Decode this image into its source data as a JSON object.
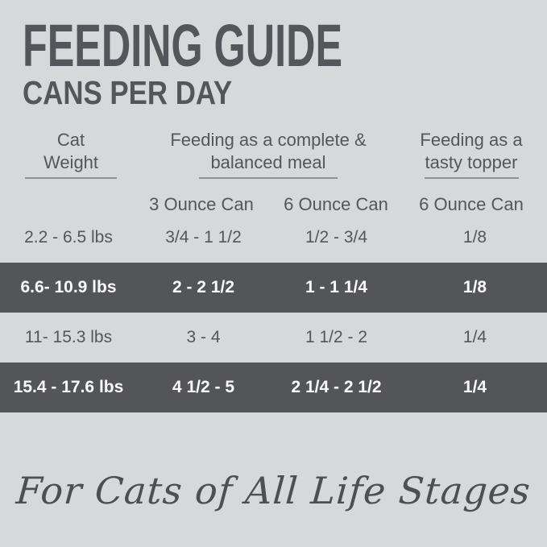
{
  "title": "FEEDING GUIDE",
  "subtitle": "CANS PER DAY",
  "header": {
    "cat_weight": {
      "line1": "Cat",
      "line2": "Weight"
    },
    "complete_meal": {
      "line1": "Feeding as a complete &",
      "line2": "balanced meal"
    },
    "tasty_topper": {
      "line1": "Feeding as a",
      "line2": "tasty topper"
    }
  },
  "subheaders": {
    "complete_3oz": "3 Ounce Can",
    "complete_6oz": "6 Ounce Can",
    "topper_6oz": "6 Ounce Can"
  },
  "rows": [
    {
      "weight": "2.2 - 6.5 lbs",
      "can3": "3/4 - 1 1/2",
      "can6": "1/2 - 3/4",
      "topper": "1/8"
    },
    {
      "weight": "6.6- 10.9 lbs",
      "can3": "2 - 2 1/2",
      "can6": "1 - 1 1/4",
      "topper": "1/8"
    },
    {
      "weight": "11- 15.3 lbs",
      "can3": "3 - 4",
      "can6": "1 1/2 - 2",
      "topper": "1/4"
    },
    {
      "weight": "15.4 - 17.6 lbs",
      "can3": "4 1/2 - 5",
      "can6": "2 1/4 - 2 1/2",
      "topper": "1/4"
    }
  ],
  "footer": "For Cats of All Life Stages",
  "colors": {
    "background": "#d7d8da",
    "text": "#55565b",
    "highlight_row_bg": "#545559",
    "highlight_row_text": "#fafafa",
    "underline": "#8f9093"
  },
  "chart_data": {
    "type": "table",
    "title": "FEEDING GUIDE",
    "subtitle": "CANS PER DAY",
    "column_groups": [
      "Cat Weight",
      "Feeding as a complete & balanced meal",
      "Feeding as a tasty topper"
    ],
    "columns": [
      "Cat Weight",
      "3 Ounce Can (complete & balanced meal)",
      "6 Ounce Can (complete & balanced meal)",
      "6 Ounce Can (tasty topper)"
    ],
    "rows": [
      [
        "2.2 - 6.5 lbs",
        "3/4 - 1 1/2",
        "1/2 - 3/4",
        "1/8"
      ],
      [
        "6.6- 10.9 lbs",
        "2 - 2 1/2",
        "1 - 1 1/4",
        "1/8"
      ],
      [
        "11- 15.3 lbs",
        "3 - 4",
        "1 1/2 - 2",
        "1/4"
      ],
      [
        "15.4 - 17.6 lbs",
        "4 1/2 - 5",
        "2 1/4 - 2 1/2",
        "1/4"
      ]
    ],
    "highlighted_rows": [
      1,
      3
    ],
    "footnote": "For Cats of All Life Stages"
  }
}
